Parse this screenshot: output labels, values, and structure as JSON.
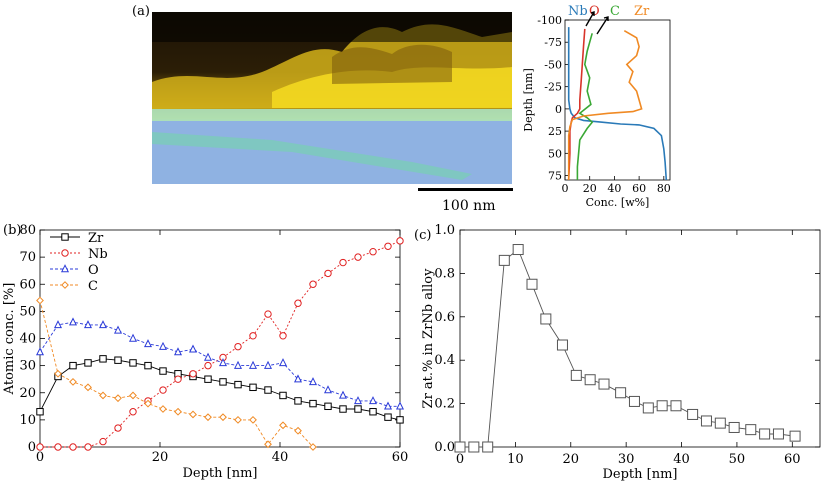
{
  "panel_labels": {
    "a": "(a)",
    "b": "(b)",
    "c": "(c)"
  },
  "scale_bar": {
    "label": "100 nm"
  },
  "chart_data": [
    {
      "type": "line",
      "panel": "(a)",
      "xlabel": "Conc. [w%]",
      "ylabel": "Depth [nm]",
      "xlim": [
        0,
        85
      ],
      "ylim": [
        -100,
        80
      ],
      "y_inverted": true,
      "xticks": [
        0,
        20,
        40,
        60,
        80
      ],
      "yticks": [
        -100,
        -75,
        -50,
        -25,
        0,
        25,
        50,
        75
      ],
      "series": [
        {
          "name": "Nb",
          "color": "#2a7ab8",
          "points": [
            [
              3,
              -92
            ],
            [
              3,
              -60
            ],
            [
              3,
              -30
            ],
            [
              3,
              -10
            ],
            [
              4,
              0
            ],
            [
              5,
              5
            ],
            [
              8,
              10
            ],
            [
              15,
              13
            ],
            [
              30,
              15
            ],
            [
              45,
              17
            ],
            [
              60,
              18
            ],
            [
              72,
              22
            ],
            [
              78,
              30
            ],
            [
              80,
              45
            ],
            [
              81,
              60
            ],
            [
              82,
              80
            ]
          ]
        },
        {
          "name": "O",
          "color": "#d8342a",
          "points": [
            [
              16,
              -90
            ],
            [
              15,
              -70
            ],
            [
              14,
              -50
            ],
            [
              13,
              -30
            ],
            [
              12,
              -10
            ],
            [
              12,
              0
            ],
            [
              10,
              5
            ],
            [
              6,
              10
            ],
            [
              5,
              15
            ],
            [
              4,
              25
            ],
            [
              4,
              50
            ],
            [
              3,
              80
            ]
          ]
        },
        {
          "name": "C",
          "color": "#3aa835",
          "points": [
            [
              22,
              -85
            ],
            [
              20,
              -75
            ],
            [
              18,
              -65
            ],
            [
              16,
              -50
            ],
            [
              20,
              -35
            ],
            [
              18,
              -20
            ],
            [
              21,
              -5
            ],
            [
              12,
              5
            ],
            [
              18,
              10
            ],
            [
              22,
              15
            ],
            [
              18,
              22
            ],
            [
              12,
              35
            ],
            [
              11,
              50
            ],
            [
              10,
              65
            ],
            [
              10,
              80
            ]
          ]
        },
        {
          "name": "Zr",
          "color": "#f08a24",
          "points": [
            [
              48,
              -88
            ],
            [
              58,
              -80
            ],
            [
              60,
              -70
            ],
            [
              58,
              -60
            ],
            [
              50,
              -50
            ],
            [
              55,
              -42
            ],
            [
              52,
              -30
            ],
            [
              58,
              -20
            ],
            [
              60,
              -10
            ],
            [
              62,
              0
            ],
            [
              55,
              3
            ],
            [
              35,
              5
            ],
            [
              15,
              8
            ],
            [
              6,
              12
            ],
            [
              4,
              20
            ],
            [
              3,
              30
            ],
            [
              3,
              50
            ],
            [
              3,
              80
            ]
          ]
        }
      ]
    },
    {
      "type": "line",
      "panel": "(b)",
      "xlabel": "Depth [nm]",
      "ylabel": "Atomic conc. [%]",
      "xlim": [
        0,
        60
      ],
      "ylim": [
        0,
        80
      ],
      "xticks": [
        0,
        20,
        40,
        60
      ],
      "yticks": [
        0,
        10,
        20,
        30,
        40,
        50,
        60,
        70,
        80
      ],
      "legend": "top-left",
      "series": [
        {
          "name": "Zr",
          "color": "#000000",
          "marker": "square",
          "x": [
            0,
            3,
            5.5,
            8,
            10.5,
            13,
            15.5,
            18,
            20.5,
            23,
            25.5,
            28,
            30.5,
            33,
            35.5,
            38,
            40.5,
            43,
            45.5,
            48,
            50.5,
            53,
            55.5,
            58,
            60
          ],
          "values": [
            13,
            26,
            30,
            31,
            32.5,
            32,
            31,
            30,
            28,
            27,
            26,
            25,
            24,
            23,
            22,
            21,
            19,
            17,
            16,
            15,
            14,
            14,
            13,
            11,
            10
          ]
        },
        {
          "name": "Nb",
          "color": "#e02020",
          "marker": "circle",
          "x": [
            0,
            3,
            5.5,
            8,
            10.5,
            13,
            15.5,
            18,
            20.5,
            23,
            25.5,
            28,
            30.5,
            33,
            35.5,
            38,
            40.5,
            43,
            45.5,
            48,
            50.5,
            53,
            55.5,
            58,
            60
          ],
          "values": [
            0,
            0,
            0,
            0,
            2,
            7,
            13,
            17,
            21,
            25,
            27,
            30,
            33,
            37,
            41,
            49,
            41,
            53,
            60,
            64,
            68,
            70,
            72,
            74,
            76
          ]
        },
        {
          "name": "O",
          "color": "#2a3ad8",
          "marker": "triangle",
          "x": [
            0,
            3,
            5.5,
            8,
            10.5,
            13,
            15.5,
            18,
            20.5,
            23,
            25.5,
            28,
            30.5,
            33,
            35.5,
            38,
            40.5,
            43,
            45.5,
            48,
            50.5,
            53,
            55.5,
            58,
            60
          ],
          "values": [
            35,
            45,
            46,
            45,
            45,
            43,
            40,
            38,
            37,
            35,
            36,
            33,
            31,
            30,
            30,
            30,
            31,
            25,
            24,
            21,
            19,
            17,
            17,
            15,
            15
          ]
        },
        {
          "name": "C",
          "color": "#f08a24",
          "marker": "diamond",
          "x": [
            0,
            3,
            5.5,
            8,
            10.5,
            13,
            15.5,
            18,
            20.5,
            23,
            25.5,
            28,
            30.5,
            33,
            35.5,
            38,
            40.5,
            43,
            45.5
          ],
          "values": [
            54,
            27,
            24,
            22,
            19,
            18,
            19,
            16,
            14,
            13,
            12,
            11,
            11,
            10,
            10,
            1,
            8,
            6,
            0
          ]
        }
      ]
    },
    {
      "type": "line",
      "panel": "(c)",
      "xlabel": "Depth [nm]",
      "ylabel": "Zr at.% in ZrNb alloy",
      "xlim": [
        0,
        65
      ],
      "ylim": [
        0,
        1.0
      ],
      "xticks": [
        0,
        10,
        20,
        30,
        40,
        50,
        60
      ],
      "yticks": [
        0.0,
        0.2,
        0.4,
        0.6,
        0.8,
        1.0
      ],
      "series": [
        {
          "color": "#555555",
          "marker": "square",
          "x": [
            0,
            2.5,
            5,
            8,
            10.5,
            13,
            15.5,
            18.5,
            21,
            23.5,
            26,
            29,
            31.5,
            34,
            36.5,
            39,
            42,
            44.5,
            47,
            49.5,
            52.5,
            55,
            57.5,
            60.5
          ],
          "values": [
            0,
            0,
            0,
            0.86,
            0.91,
            0.75,
            0.59,
            0.47,
            0.33,
            0.31,
            0.29,
            0.25,
            0.21,
            0.18,
            0.19,
            0.19,
            0.15,
            0.12,
            0.11,
            0.09,
            0.08,
            0.06,
            0.06,
            0.05
          ]
        }
      ]
    }
  ]
}
